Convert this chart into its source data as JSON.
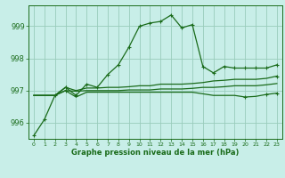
{
  "title": "Graphe pression niveau de la mer (hPa)",
  "bg_color": "#c8eee8",
  "grid_color": "#99ccbb",
  "line_color": "#1a6b1a",
  "xlim": [
    -0.5,
    23.5
  ],
  "ylim": [
    995.5,
    999.65
  ],
  "yticks": [
    996,
    997,
    998,
    999
  ],
  "xticks": [
    0,
    1,
    2,
    3,
    4,
    5,
    6,
    7,
    8,
    9,
    10,
    11,
    12,
    13,
    14,
    15,
    16,
    17,
    18,
    19,
    20,
    21,
    22,
    23
  ],
  "series1": [
    995.6,
    996.1,
    996.85,
    997.1,
    996.85,
    997.2,
    997.1,
    997.5,
    997.8,
    998.35,
    999.0,
    999.1,
    999.15,
    999.35,
    998.95,
    999.05,
    997.75,
    997.55,
    997.75,
    997.7,
    997.7,
    997.7,
    997.7,
    997.8
  ],
  "series2": [
    996.85,
    996.85,
    996.85,
    997.1,
    997.0,
    997.08,
    997.08,
    997.1,
    997.1,
    997.12,
    997.15,
    997.15,
    997.2,
    997.2,
    997.2,
    997.22,
    997.25,
    997.3,
    997.32,
    997.35,
    997.35,
    997.35,
    997.38,
    997.45
  ],
  "series3": [
    996.85,
    996.85,
    996.85,
    997.0,
    996.98,
    997.0,
    997.0,
    997.0,
    997.0,
    997.02,
    997.02,
    997.02,
    997.05,
    997.05,
    997.05,
    997.07,
    997.1,
    997.1,
    997.12,
    997.15,
    997.15,
    997.15,
    997.18,
    997.22
  ],
  "series4": [
    996.85,
    996.85,
    996.85,
    997.0,
    996.8,
    996.95,
    996.95,
    996.95,
    996.95,
    996.95,
    996.95,
    996.95,
    996.95,
    996.95,
    996.95,
    996.95,
    996.9,
    996.85,
    996.85,
    996.85,
    996.8,
    996.82,
    996.88,
    996.92
  ]
}
